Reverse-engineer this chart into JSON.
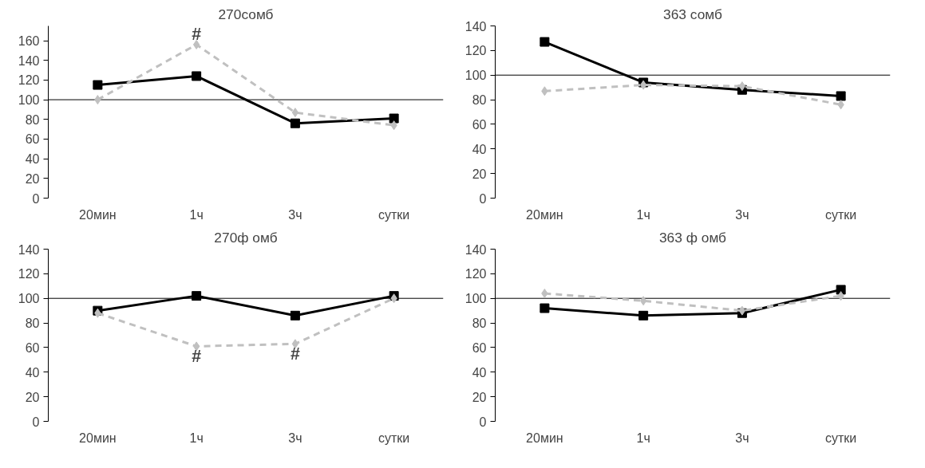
{
  "chart_data": [
    {
      "type": "line",
      "title": "270сомб",
      "categories": [
        "20мин",
        "1ч",
        "3ч",
        "сутки"
      ],
      "ylim": [
        0,
        175
      ],
      "yticks": [
        0,
        20,
        40,
        60,
        80,
        100,
        120,
        140,
        160
      ],
      "grid": false,
      "series": [
        {
          "color": "#000000",
          "marker": "square",
          "line_style": "solid",
          "values": [
            115,
            124,
            76,
            81
          ]
        },
        {
          "color": "#c0c0c0",
          "marker": "diamond",
          "line_style": "dashed",
          "values": [
            100,
            156,
            87,
            74
          ]
        }
      ],
      "ref_lines": [
        {
          "axis": "y",
          "value": 100
        }
      ],
      "annotations": [
        {
          "text": "#",
          "x": "1ч",
          "y": 156
        }
      ]
    },
    {
      "type": "line",
      "title": "363 сомб",
      "categories": [
        "20мин",
        "1ч",
        "3ч",
        "сутки"
      ],
      "ylim": [
        0,
        140
      ],
      "yticks": [
        0,
        20,
        40,
        60,
        80,
        100,
        120,
        140
      ],
      "grid": false,
      "series": [
        {
          "color": "#000000",
          "marker": "square",
          "line_style": "solid",
          "values": [
            127,
            94,
            88,
            83
          ]
        },
        {
          "color": "#c0c0c0",
          "marker": "diamond",
          "line_style": "dashed",
          "values": [
            87,
            92,
            91,
            76
          ]
        }
      ],
      "ref_lines": [
        {
          "axis": "y",
          "value": 100
        }
      ]
    },
    {
      "type": "line",
      "title": "270ф омб",
      "categories": [
        "20мин",
        "1ч",
        "3ч",
        "сутки"
      ],
      "ylim": [
        0,
        140
      ],
      "yticks": [
        0,
        20,
        40,
        60,
        80,
        100,
        120,
        140
      ],
      "grid": false,
      "series": [
        {
          "color": "#000000",
          "marker": "square",
          "line_style": "solid",
          "values": [
            90,
            102,
            86,
            102
          ]
        },
        {
          "color": "#c0c0c0",
          "marker": "diamond",
          "line_style": "dashed",
          "values": [
            88,
            61,
            63,
            100
          ]
        }
      ],
      "ref_lines": [
        {
          "axis": "y",
          "value": 100
        }
      ],
      "annotations": [
        {
          "text": "#",
          "x": "1ч",
          "y": 61
        },
        {
          "text": "#",
          "x": "3ч",
          "y": 63
        }
      ]
    },
    {
      "type": "line",
      "title": "363 ф омб",
      "categories": [
        "20мин",
        "1ч",
        "3ч",
        "сутки"
      ],
      "ylim": [
        0,
        140
      ],
      "yticks": [
        0,
        20,
        40,
        60,
        80,
        100,
        120,
        140
      ],
      "grid": false,
      "series": [
        {
          "color": "#000000",
          "marker": "square",
          "line_style": "solid",
          "values": [
            92,
            86,
            88,
            107
          ]
        },
        {
          "color": "#c0c0c0",
          "marker": "diamond",
          "line_style": "dashed",
          "values": [
            104,
            98,
            90,
            102
          ]
        }
      ],
      "ref_lines": [
        {
          "axis": "y",
          "value": 100
        }
      ]
    }
  ]
}
